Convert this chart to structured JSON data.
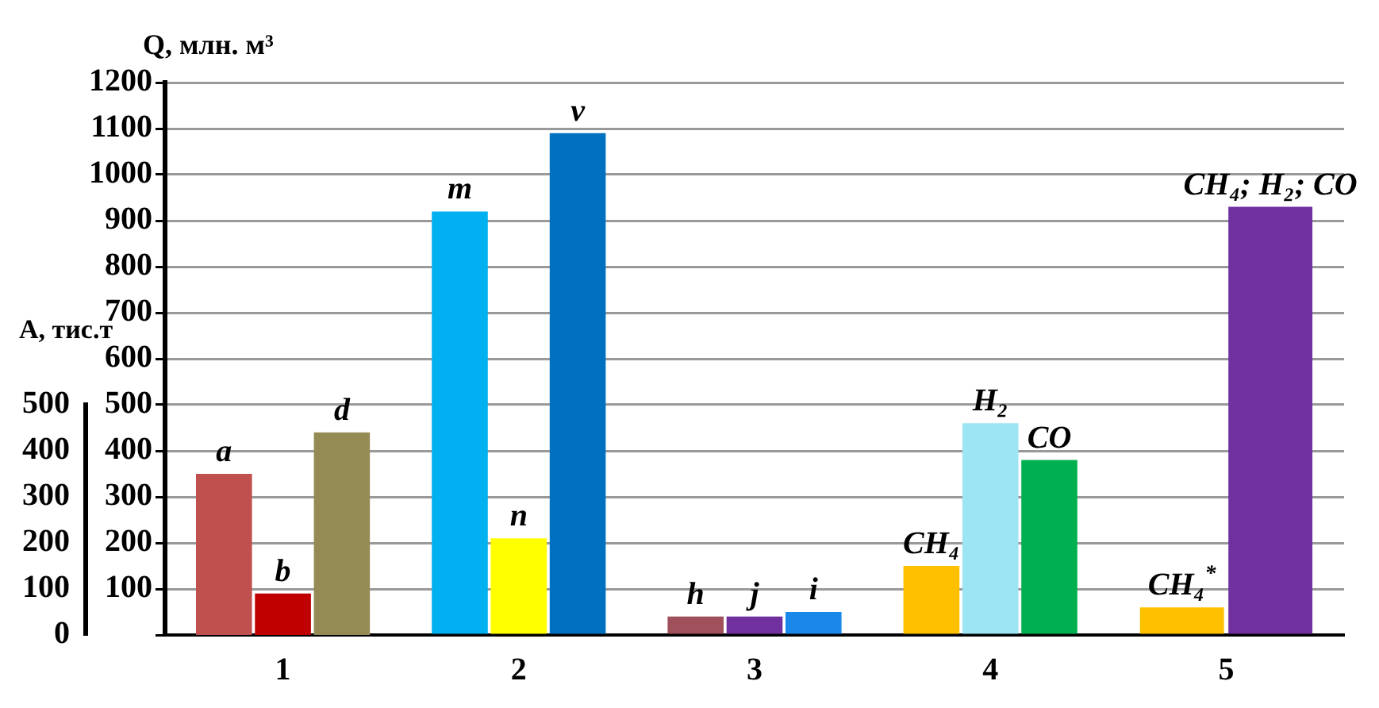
{
  "chart_data": {
    "type": "bar",
    "ylabel": "Q, млн. м³",
    "y2label": "A, тис.т",
    "categories": [
      "1",
      "2",
      "3",
      "4",
      "5"
    ],
    "series": [
      {
        "name": "a",
        "color": "#c0504d",
        "axis": "y2",
        "values": [
          350,
          null,
          null,
          null,
          null
        ]
      },
      {
        "name": "b",
        "color": "#c00000",
        "axis": "y2",
        "values": [
          90,
          null,
          null,
          null,
          null
        ]
      },
      {
        "name": "d",
        "color": "#948a54",
        "axis": "y2",
        "values": [
          440,
          null,
          null,
          null,
          null
        ]
      },
      {
        "name": "m",
        "color": "#00b0f0",
        "values": [
          null,
          920,
          null,
          null,
          null
        ]
      },
      {
        "name": "n",
        "color": "#ffff00",
        "values": [
          null,
          210,
          null,
          null,
          null
        ]
      },
      {
        "name": "v",
        "color": "#0070c0",
        "values": [
          null,
          1090,
          null,
          null,
          null
        ]
      },
      {
        "name": "h",
        "color": "#a0505a",
        "values": [
          null,
          null,
          40,
          null,
          null
        ]
      },
      {
        "name": "j",
        "color": "#7030a0",
        "values": [
          null,
          null,
          40,
          null,
          null
        ]
      },
      {
        "name": "i",
        "color": "#1a88e8",
        "values": [
          null,
          null,
          50,
          null,
          null
        ]
      },
      {
        "name": "CH₄",
        "color": "#ffc000",
        "values": [
          null,
          null,
          null,
          150,
          null
        ]
      },
      {
        "name": "H₂",
        "color": "#9be5f5",
        "values": [
          null,
          null,
          null,
          460,
          null
        ]
      },
      {
        "name": "CO",
        "color": "#00b050",
        "values": [
          null,
          null,
          null,
          380,
          null
        ]
      },
      {
        "name": "CH₄$^{*}$",
        "color": "#ffc000",
        "values": [
          null,
          null,
          null,
          null,
          60
        ]
      },
      {
        "name": "CH₄; H₂; CO",
        "color": "#7030a0",
        "values": [
          null,
          null,
          null,
          null,
          930
        ]
      }
    ],
    "ylim": [
      0,
      1200
    ],
    "yticks": [
      {
        "value": 0,
        "label": null
      },
      100,
      200,
      300,
      400,
      500,
      600,
      700,
      800,
      900,
      1000,
      1100,
      1200
    ],
    "y2lim": [
      0,
      500
    ],
    "y2ticks": [
      0,
      100,
      200,
      300,
      400,
      500
    ],
    "grid": "y",
    "legend": false
  }
}
